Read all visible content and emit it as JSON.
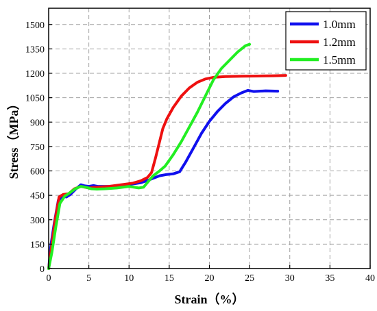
{
  "chart_data": {
    "type": "line",
    "title": "",
    "xlabel": "Strain（%）",
    "ylabel": "Stress（MPa）",
    "xlim": [
      0,
      40
    ],
    "ylim": [
      0,
      1600
    ],
    "xticks": [
      0,
      5,
      10,
      15,
      20,
      25,
      30,
      35,
      40
    ],
    "yticks": [
      0,
      150,
      300,
      450,
      600,
      750,
      900,
      1050,
      1200,
      1350,
      1500
    ],
    "grid": true,
    "grid_style": "dashed",
    "legend_position": "top-right",
    "series": [
      {
        "name": "1.0mm",
        "color": "#1010ee",
        "points": [
          [
            0,
            0
          ],
          [
            0.3,
            150
          ],
          [
            0.7,
            280
          ],
          [
            1.2,
            420
          ],
          [
            1.8,
            445
          ],
          [
            2.2,
            440
          ],
          [
            2.7,
            455
          ],
          [
            3.3,
            485
          ],
          [
            4.0,
            515
          ],
          [
            4.5,
            508
          ],
          [
            5.0,
            505
          ],
          [
            5.6,
            510
          ],
          [
            6.1,
            505
          ],
          [
            7.5,
            505
          ],
          [
            9.0,
            510
          ],
          [
            10.5,
            520
          ],
          [
            11.5,
            528
          ],
          [
            12.5,
            545
          ],
          [
            13.0,
            555
          ],
          [
            13.8,
            570
          ],
          [
            14.7,
            578
          ],
          [
            15.5,
            582
          ],
          [
            16.3,
            595
          ],
          [
            17.0,
            650
          ],
          [
            18.0,
            740
          ],
          [
            19.0,
            830
          ],
          [
            20.0,
            905
          ],
          [
            21.0,
            965
          ],
          [
            22.0,
            1015
          ],
          [
            23.0,
            1055
          ],
          [
            24.0,
            1080
          ],
          [
            24.8,
            1095
          ],
          [
            25.5,
            1088
          ],
          [
            27.0,
            1092
          ],
          [
            28.5,
            1090
          ]
        ]
      },
      {
        "name": "1.2mm",
        "color": "#ee1010",
        "points": [
          [
            0,
            0
          ],
          [
            0.4,
            150
          ],
          [
            0.8,
            300
          ],
          [
            1.3,
            440
          ],
          [
            1.8,
            455
          ],
          [
            2.5,
            460
          ],
          [
            3.2,
            490
          ],
          [
            4.0,
            505
          ],
          [
            4.5,
            500
          ],
          [
            5.0,
            495
          ],
          [
            6.0,
            500
          ],
          [
            7.5,
            505
          ],
          [
            9.0,
            515
          ],
          [
            10.5,
            525
          ],
          [
            11.5,
            540
          ],
          [
            12.3,
            560
          ],
          [
            12.8,
            590
          ],
          [
            13.3,
            680
          ],
          [
            13.8,
            780
          ],
          [
            14.2,
            860
          ],
          [
            14.7,
            920
          ],
          [
            15.5,
            990
          ],
          [
            16.5,
            1060
          ],
          [
            17.5,
            1110
          ],
          [
            18.5,
            1145
          ],
          [
            19.5,
            1165
          ],
          [
            20.5,
            1175
          ],
          [
            22.0,
            1180
          ],
          [
            24.0,
            1182
          ],
          [
            26.0,
            1183
          ],
          [
            28.0,
            1185
          ],
          [
            29.5,
            1187
          ]
        ]
      },
      {
        "name": "1.5mm",
        "color": "#22ee22",
        "points": [
          [
            0,
            0
          ],
          [
            0.4,
            100
          ],
          [
            0.9,
            260
          ],
          [
            1.4,
            400
          ],
          [
            2.0,
            445
          ],
          [
            2.6,
            465
          ],
          [
            3.3,
            490
          ],
          [
            4.0,
            505
          ],
          [
            4.6,
            500
          ],
          [
            5.3,
            490
          ],
          [
            6.0,
            488
          ],
          [
            7.0,
            490
          ],
          [
            8.5,
            495
          ],
          [
            10.0,
            505
          ],
          [
            11.2,
            495
          ],
          [
            11.8,
            500
          ],
          [
            12.4,
            535
          ],
          [
            13.0,
            570
          ],
          [
            13.8,
            600
          ],
          [
            14.5,
            630
          ],
          [
            15.5,
            700
          ],
          [
            16.5,
            780
          ],
          [
            17.5,
            870
          ],
          [
            18.5,
            960
          ],
          [
            19.5,
            1060
          ],
          [
            20.5,
            1160
          ],
          [
            21.5,
            1230
          ],
          [
            22.5,
            1280
          ],
          [
            23.5,
            1330
          ],
          [
            24.5,
            1370
          ],
          [
            25.0,
            1378
          ]
        ]
      }
    ]
  }
}
